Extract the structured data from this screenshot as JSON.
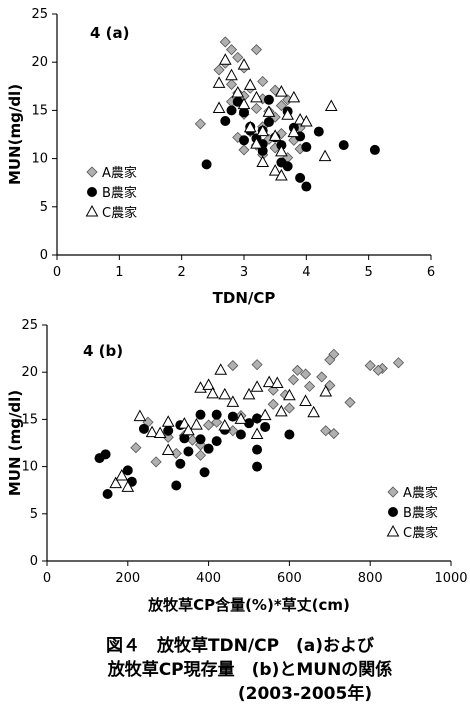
{
  "caption": {
    "line1": "図４　放牧草TDN/CP　(a)および",
    "line2": "放牧草CP現存量　(b)とMUNの関係",
    "line3": "(2003-2005年)"
  },
  "chart_data": [
    {
      "type": "scatter",
      "panel_label": "4 (a)",
      "xlabel": "TDN/CP",
      "ylabel": "MUN(mg/dl)",
      "xlim": [
        0,
        6
      ],
      "ylim": [
        0,
        25
      ],
      "xticks": [
        0,
        1,
        2,
        3,
        4,
        5,
        6
      ],
      "yticks": [
        0,
        5,
        10,
        15,
        20,
        25
      ],
      "grid": false,
      "legend_position": "middle-left",
      "series": [
        {
          "name": "A農家",
          "marker": "diamond",
          "color": "#b0b0b0",
          "points": [
            [
              2.7,
              22.1
            ],
            [
              2.8,
              21.3
            ],
            [
              3.2,
              21.3
            ],
            [
              2.9,
              20.5
            ],
            [
              2.7,
              19.9
            ],
            [
              3.0,
              19.4
            ],
            [
              2.6,
              19.2
            ],
            [
              3.3,
              18.0
            ],
            [
              2.8,
              17.7
            ],
            [
              3.1,
              17.3
            ],
            [
              3.5,
              17.1
            ],
            [
              2.9,
              16.8
            ],
            [
              3.0,
              16.5
            ],
            [
              3.3,
              16.2
            ],
            [
              3.7,
              16.1
            ],
            [
              2.8,
              15.9
            ],
            [
              3.6,
              15.5
            ],
            [
              3.2,
              15.2
            ],
            [
              3.4,
              14.9
            ],
            [
              3.0,
              14.6
            ],
            [
              3.5,
              14.3
            ],
            [
              2.3,
              13.6
            ],
            [
              3.3,
              13.3
            ],
            [
              3.9,
              13.2
            ],
            [
              3.1,
              12.8
            ],
            [
              3.6,
              12.6
            ],
            [
              2.9,
              12.2
            ],
            [
              3.4,
              12.0
            ],
            [
              3.8,
              11.9
            ],
            [
              3.2,
              11.4
            ],
            [
              3.5,
              11.1
            ],
            [
              3.0,
              10.9
            ],
            [
              3.9,
              11.0
            ],
            [
              3.3,
              10.4
            ],
            [
              3.7,
              10.1
            ]
          ]
        },
        {
          "name": "B農家",
          "marker": "circle",
          "color": "#000000",
          "points": [
            [
              2.4,
              9.4
            ],
            [
              2.8,
              15.0
            ],
            [
              2.9,
              15.9
            ],
            [
              3.0,
              14.8
            ],
            [
              2.7,
              13.9
            ],
            [
              3.1,
              13.3
            ],
            [
              3.3,
              12.9
            ],
            [
              3.2,
              12.1
            ],
            [
              3.4,
              13.8
            ],
            [
              3.5,
              12.2
            ],
            [
              3.0,
              11.9
            ],
            [
              3.3,
              11.5
            ],
            [
              3.6,
              11.4
            ],
            [
              3.7,
              14.9
            ],
            [
              3.8,
              13.2
            ],
            [
              3.9,
              12.3
            ],
            [
              4.0,
              11.2
            ],
            [
              4.2,
              12.8
            ],
            [
              3.6,
              9.6
            ],
            [
              3.7,
              9.2
            ],
            [
              3.9,
              8.0
            ],
            [
              4.0,
              7.1
            ],
            [
              3.3,
              10.8
            ],
            [
              4.6,
              11.4
            ],
            [
              5.1,
              10.9
            ],
            [
              3.4,
              16.1
            ],
            [
              3.1,
              12.9
            ]
          ]
        },
        {
          "name": "C農家",
          "marker": "triangle",
          "color": "#000000",
          "points": [
            [
              2.7,
              20.2
            ],
            [
              3.0,
              19.7
            ],
            [
              2.8,
              18.6
            ],
            [
              2.6,
              17.8
            ],
            [
              3.1,
              17.6
            ],
            [
              2.9,
              16.8
            ],
            [
              3.2,
              16.3
            ],
            [
              3.0,
              15.6
            ],
            [
              3.6,
              16.9
            ],
            [
              3.8,
              16.3
            ],
            [
              2.6,
              15.2
            ],
            [
              3.4,
              14.8
            ],
            [
              3.7,
              14.5
            ],
            [
              3.9,
              14.0
            ],
            [
              4.0,
              13.8
            ],
            [
              3.1,
              13.2
            ],
            [
              3.3,
              12.8
            ],
            [
              3.5,
              12.3
            ],
            [
              3.8,
              12.7
            ],
            [
              4.4,
              15.4
            ],
            [
              3.2,
              11.5
            ],
            [
              3.6,
              10.7
            ],
            [
              3.3,
              9.6
            ],
            [
              3.5,
              8.7
            ],
            [
              3.6,
              8.2
            ],
            [
              4.3,
              10.2
            ]
          ]
        }
      ]
    },
    {
      "type": "scatter",
      "panel_label": "4 (b)",
      "xlabel": "放牧草CP含量(%)*草丈(cm)",
      "ylabel": "MUN (mg/dl)",
      "xlim": [
        0,
        1000
      ],
      "ylim": [
        0,
        25
      ],
      "xticks": [
        0,
        200,
        400,
        600,
        800,
        1000
      ],
      "yticks": [
        0,
        5,
        10,
        15,
        20,
        25
      ],
      "grid": false,
      "legend_position": "bottom-right",
      "series": [
        {
          "name": "A農家",
          "marker": "diamond",
          "color": "#b0b0b0",
          "points": [
            [
              710,
              21.9
            ],
            [
              700,
              21.3
            ],
            [
              870,
              21.0
            ],
            [
              800,
              20.7
            ],
            [
              830,
              20.4
            ],
            [
              620,
              20.2
            ],
            [
              640,
              19.8
            ],
            [
              820,
              20.2
            ],
            [
              610,
              19.2
            ],
            [
              680,
              19.5
            ],
            [
              700,
              18.6
            ],
            [
              650,
              18.5
            ],
            [
              460,
              20.7
            ],
            [
              520,
              20.8
            ],
            [
              560,
              18.1
            ],
            [
              590,
              17.6
            ],
            [
              750,
              16.8
            ],
            [
              600,
              16.2
            ],
            [
              560,
              16.6
            ],
            [
              480,
              15.4
            ],
            [
              420,
              14.7
            ],
            [
              520,
              15.1
            ],
            [
              400,
              14.4
            ],
            [
              340,
              13.3
            ],
            [
              360,
              12.8
            ],
            [
              300,
              13.1
            ],
            [
              250,
              14.7
            ],
            [
              380,
              12.3
            ],
            [
              320,
              11.4
            ],
            [
              380,
              11.2
            ],
            [
              220,
              12.0
            ],
            [
              270,
              10.5
            ],
            [
              460,
              13.8
            ],
            [
              690,
              13.8
            ],
            [
              710,
              13.5
            ]
          ]
        },
        {
          "name": "B農家",
          "marker": "circle",
          "color": "#000000",
          "points": [
            [
              130,
              10.9
            ],
            [
              145,
              11.3
            ],
            [
              150,
              7.1
            ],
            [
              200,
              9.6
            ],
            [
              210,
              8.4
            ],
            [
              240,
              14.0
            ],
            [
              300,
              13.8
            ],
            [
              330,
              14.4
            ],
            [
              340,
              13.0
            ],
            [
              350,
              11.6
            ],
            [
              380,
              12.9
            ],
            [
              400,
              11.9
            ],
            [
              330,
              10.3
            ],
            [
              320,
              8.0
            ],
            [
              390,
              9.4
            ],
            [
              420,
              12.7
            ],
            [
              440,
              13.9
            ],
            [
              460,
              15.3
            ],
            [
              480,
              13.4
            ],
            [
              500,
              14.6
            ],
            [
              520,
              15.1
            ],
            [
              540,
              14.2
            ],
            [
              520,
              11.8
            ],
            [
              520,
              10.0
            ],
            [
              600,
              13.4
            ],
            [
              420,
              15.5
            ],
            [
              380,
              15.5
            ]
          ]
        },
        {
          "name": "C農家",
          "marker": "triangle",
          "color": "#000000",
          "points": [
            [
              170,
              8.2
            ],
            [
              185,
              9.0
            ],
            [
              200,
              7.8
            ],
            [
              230,
              15.3
            ],
            [
              260,
              13.6
            ],
            [
              280,
              13.5
            ],
            [
              300,
              14.7
            ],
            [
              340,
              14.5
            ],
            [
              370,
              14.4
            ],
            [
              380,
              18.3
            ],
            [
              400,
              18.6
            ],
            [
              410,
              17.7
            ],
            [
              430,
              20.2
            ],
            [
              440,
              17.6
            ],
            [
              460,
              16.8
            ],
            [
              500,
              17.6
            ],
            [
              520,
              18.4
            ],
            [
              540,
              15.4
            ],
            [
              550,
              18.9
            ],
            [
              570,
              18.8
            ],
            [
              580,
              15.8
            ],
            [
              600,
              17.5
            ],
            [
              640,
              16.9
            ],
            [
              660,
              15.7
            ],
            [
              690,
              17.9
            ],
            [
              480,
              15.0
            ],
            [
              520,
              13.4
            ],
            [
              440,
              14.3
            ],
            [
              350,
              13.8
            ],
            [
              300,
              11.7
            ]
          ]
        }
      ]
    }
  ]
}
